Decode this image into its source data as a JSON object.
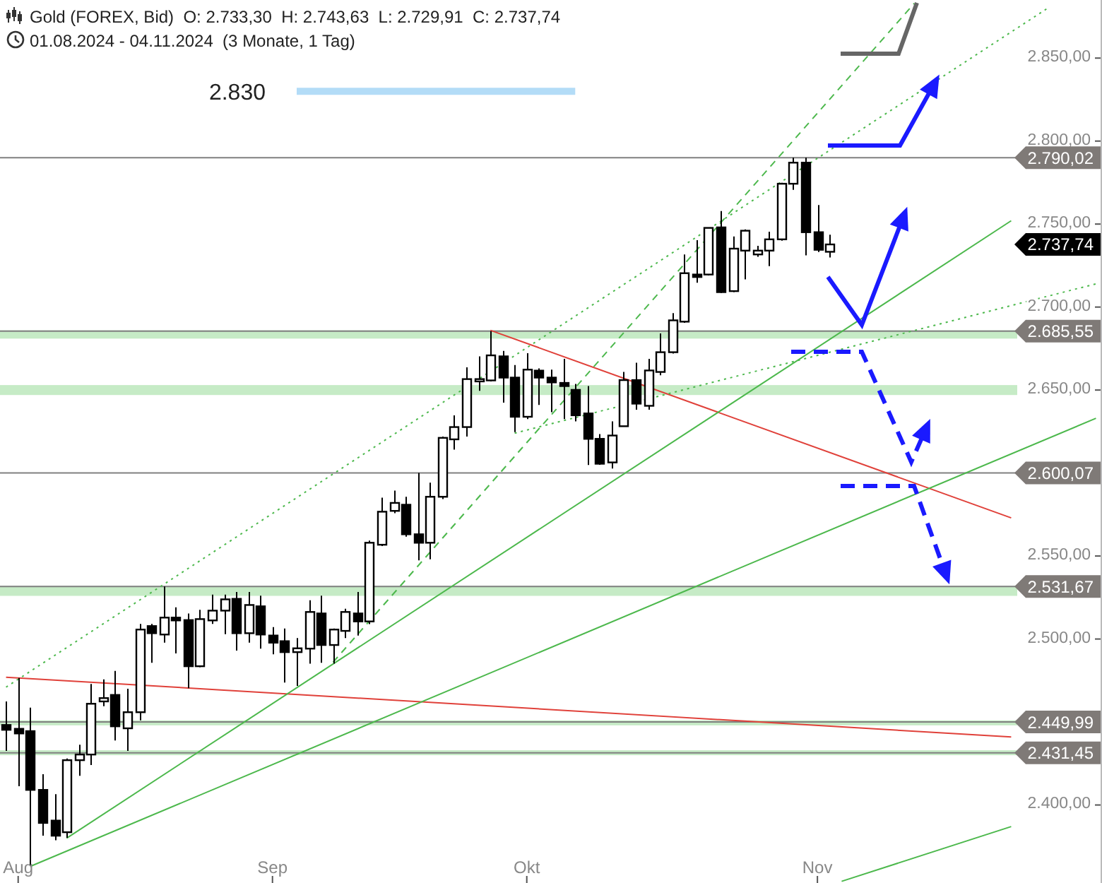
{
  "chart_data": {
    "type": "candlestick",
    "title": "Gold (FOREX, Bid)  O: 2.733,30  H: 2.743,63  L: 2.729,91  C: 2.737,74",
    "subtitle": "01.08.2024 - 04.11.2024  (3 Monate, 1 Tag)",
    "categories": [
      null,
      "Aug",
      null,
      null,
      null,
      null,
      null,
      null,
      null,
      null,
      null,
      null,
      null,
      null,
      null,
      null,
      null,
      null,
      null,
      null,
      null,
      null,
      "Sep",
      null,
      null,
      null,
      null,
      null,
      null,
      null,
      null,
      null,
      null,
      null,
      null,
      null,
      null,
      null,
      null,
      null,
      null,
      null,
      null,
      "Okt",
      null,
      null,
      null,
      null,
      null,
      null,
      null,
      null,
      null,
      null,
      null,
      null,
      null,
      null,
      null,
      null,
      null,
      null,
      null,
      null,
      null,
      null,
      null,
      "Nov",
      null,
      null,
      null,
      null,
      null,
      null,
      null,
      null,
      null,
      null,
      null,
      null,
      null,
      null,
      null,
      null,
      null,
      null,
      null,
      null,
      null,
      null,
      null
    ],
    "ohlc": [
      [
        2448.2,
        2462.4,
        2432.6,
        2445.3
      ],
      [
        2445.9,
        2476.5,
        2411.3,
        2443.1
      ],
      [
        2444.5,
        2458.7,
        2363.2,
        2409.1
      ],
      [
        2409.1,
        2418.5,
        2381.5,
        2389.2
      ],
      [
        2390.6,
        2406.5,
        2378.7,
        2381.5
      ],
      [
        2383.6,
        2428,
        2380.2,
        2427
      ],
      [
        2427,
        2436.3,
        2417.6,
        2430.4
      ],
      [
        2430.4,
        2472.9,
        2424.1,
        2461
      ],
      [
        2462.4,
        2475.7,
        2459.5,
        2464.4
      ],
      [
        2466.3,
        2480.8,
        2438.9,
        2447.4
      ],
      [
        2446.2,
        2470,
        2432.6,
        2455.9
      ],
      [
        2455.9,
        2509.1,
        2451,
        2505.7
      ],
      [
        2507.8,
        2509.1,
        2485.7,
        2503.5
      ],
      [
        2502.7,
        2531.67,
        2497.8,
        2512.9
      ],
      [
        2512.9,
        2519.1,
        2491.3,
        2511.2
      ],
      [
        2511.4,
        2515.4,
        2470.4,
        2483.6
      ],
      [
        2483.6,
        2517.6,
        2483,
        2512
      ],
      [
        2511.2,
        2526.7,
        2509.1,
        2517.1
      ],
      [
        2517.1,
        2526.7,
        2502.9,
        2523.9
      ],
      [
        2524.2,
        2528.4,
        2493,
        2503.5
      ],
      [
        2503.5,
        2528.4,
        2497.8,
        2520.5
      ],
      [
        2519.7,
        2526.1,
        2494.2,
        2502.7
      ],
      [
        2502.1,
        2507.2,
        2490.8,
        2497.8
      ],
      [
        2498.7,
        2506.3,
        2473.8,
        2492.1
      ],
      [
        2492.1,
        2500.6,
        2471.7,
        2494.4
      ],
      [
        2494.2,
        2523.3,
        2485.1,
        2516.3
      ],
      [
        2515.4,
        2526.1,
        2485.7,
        2496.4
      ],
      [
        2496.4,
        2506.3,
        2485.1,
        2505.7
      ],
      [
        2504.9,
        2518.2,
        2500.6,
        2516.3
      ],
      [
        2515.4,
        2528.4,
        2502.1,
        2510.6
      ],
      [
        2510.6,
        2559.3,
        2509,
        2558
      ],
      [
        2556.8,
        2585.2,
        2556,
        2576.7
      ],
      [
        2577.2,
        2589.4,
        2575.8,
        2582
      ],
      [
        2580.9,
        2585.7,
        2561.6,
        2563.1
      ],
      [
        2563.1,
        2600.07,
        2547.4,
        2558
      ],
      [
        2558,
        2594.2,
        2548,
        2585.7
      ],
      [
        2585.7,
        2622,
        2584.3,
        2621.2
      ],
      [
        2620.3,
        2634.8,
        2614.1,
        2627.7
      ],
      [
        2627.7,
        2663.7,
        2622,
        2656.6
      ],
      [
        2655.2,
        2670.3,
        2649.5,
        2656.6
      ],
      [
        2655.8,
        2685.55,
        2655.2,
        2670.9
      ],
      [
        2670.3,
        2673.6,
        2642.4,
        2657.5
      ],
      [
        2657.5,
        2665.1,
        2624.6,
        2633.9
      ],
      [
        2633.9,
        2672.2,
        2632.5,
        2662.3
      ],
      [
        2661.7,
        2663.1,
        2641,
        2657.5
      ],
      [
        2657.5,
        2662.3,
        2636.7,
        2654.6
      ],
      [
        2654.3,
        2668.8,
        2632.5,
        2652.4
      ],
      [
        2650.1,
        2653.7,
        2631.1,
        2634.8
      ],
      [
        2635.9,
        2652.4,
        2604.8,
        2620.6
      ],
      [
        2620.6,
        2623.5,
        2605,
        2605.6
      ],
      [
        2606.4,
        2631.1,
        2602.7,
        2622.6
      ],
      [
        2628.2,
        2660.9,
        2628,
        2656
      ],
      [
        2656,
        2666.5,
        2638.2,
        2641.8
      ],
      [
        2640.5,
        2668.8,
        2638.2,
        2661.8
      ],
      [
        2660.9,
        2684.1,
        2658.9,
        2672.8
      ],
      [
        2672.8,
        2696.3,
        2672,
        2692
      ],
      [
        2691.2,
        2731.7,
        2690.5,
        2720.4
      ],
      [
        2719.6,
        2740.3,
        2714.7,
        2718.1
      ],
      [
        2719.6,
        2748,
        2719,
        2747.7
      ],
      [
        2748,
        2757.9,
        2708.5,
        2709
      ],
      [
        2709.6,
        2742.5,
        2709,
        2735.2
      ],
      [
        2734,
        2746.8,
        2716.7,
        2746
      ],
      [
        2731.7,
        2736.9,
        2730.3,
        2734
      ],
      [
        2734,
        2745.4,
        2724.7,
        2740.8
      ],
      [
        2740.8,
        2774.9,
        2740,
        2774.3
      ],
      [
        2774.3,
        2790,
        2770.6,
        2787
      ],
      [
        2787,
        2790.02,
        2731.1,
        2745.1
      ],
      [
        2745.1,
        2761.5,
        2733.2,
        2734.5
      ],
      [
        2733.3,
        2743.63,
        2729.91,
        2737.74
      ],
      null,
      null,
      null,
      null,
      null,
      null,
      null,
      null,
      null,
      null,
      null,
      null,
      null,
      null,
      null,
      null,
      null,
      null,
      null,
      null,
      null,
      null
    ],
    "series": [
      {
        "type": "line",
        "color": "#e0413a",
        "values": [
          2477,
          null,
          null,
          null,
          null,
          null,
          null,
          null,
          null,
          null,
          null,
          null,
          null,
          null,
          null,
          null,
          null,
          null,
          null,
          null,
          null,
          null,
          null,
          null,
          null,
          null,
          null,
          null,
          null,
          null,
          null,
          null,
          null,
          null,
          null,
          null,
          null,
          null,
          null,
          null,
          null,
          null,
          null,
          null,
          null,
          null,
          null,
          null,
          null,
          null,
          null,
          null,
          null,
          null,
          null,
          null,
          null,
          null,
          null,
          null,
          null,
          null,
          null,
          null,
          null,
          null,
          null,
          null,
          null,
          null,
          null,
          null,
          null,
          null,
          null,
          null,
          null,
          null,
          null,
          null,
          null,
          null,
          null,
          2441,
          null,
          null,
          null,
          null,
          null,
          null,
          null
        ]
      },
      {
        "type": "line",
        "color": "#e0413a",
        "values": [
          null,
          null,
          null,
          null,
          null,
          null,
          null,
          null,
          null,
          null,
          null,
          null,
          null,
          null,
          null,
          null,
          null,
          null,
          null,
          null,
          null,
          null,
          null,
          null,
          null,
          null,
          null,
          null,
          null,
          null,
          null,
          null,
          null,
          null,
          null,
          null,
          null,
          null,
          null,
          null,
          2686,
          null,
          null,
          null,
          null,
          null,
          null,
          null,
          null,
          null,
          null,
          null,
          null,
          null,
          null,
          null,
          null,
          null,
          null,
          null,
          null,
          null,
          null,
          null,
          null,
          null,
          null,
          null,
          null,
          null,
          null,
          null,
          null,
          null,
          null,
          null,
          null,
          null,
          null,
          null,
          null,
          null,
          null,
          2573,
          null,
          null,
          null,
          null,
          null,
          null,
          null
        ]
      },
      {
        "type": "line",
        "color": "#4cb84c",
        "values": [
          null,
          null,
          null,
          null,
          null,
          2380,
          null,
          null,
          null,
          null,
          null,
          null,
          null,
          null,
          null,
          null,
          null,
          null,
          null,
          null,
          null,
          null,
          null,
          null,
          null,
          null,
          null,
          null,
          null,
          null,
          null,
          null,
          null,
          null,
          null,
          null,
          null,
          null,
          null,
          null,
          null,
          null,
          null,
          null,
          null,
          null,
          null,
          null,
          null,
          null,
          null,
          null,
          null,
          null,
          null,
          null,
          null,
          null,
          null,
          null,
          null,
          null,
          null,
          null,
          null,
          null,
          null,
          null,
          null,
          null,
          null,
          null,
          null,
          null,
          null,
          null,
          null,
          null,
          null,
          null,
          null,
          null,
          null,
          2752,
          null,
          null,
          null,
          null,
          null,
          null,
          null
        ]
      },
      {
        "type": "line",
        "color": "#4cb84c",
        "values": [
          null,
          null,
          2363,
          null,
          null,
          null,
          null,
          null,
          null,
          null,
          null,
          null,
          null,
          null,
          null,
          null,
          null,
          null,
          null,
          null,
          null,
          null,
          null,
          null,
          null,
          null,
          null,
          null,
          null,
          null,
          null,
          null,
          null,
          null,
          null,
          null,
          null,
          null,
          null,
          null,
          null,
          null,
          null,
          null,
          null,
          null,
          null,
          null,
          null,
          null,
          null,
          null,
          null,
          null,
          null,
          null,
          null,
          null,
          null,
          null,
          null,
          null,
          null,
          null,
          null,
          null,
          null,
          null,
          null,
          null,
          null,
          null,
          null,
          null,
          null,
          null,
          null,
          null,
          null,
          null,
          null,
          null,
          null,
          null,
          null,
          null,
          null,
          null,
          null,
          null,
          2633
        ]
      },
      {
        "type": "line",
        "color": "#4cb84c",
        "values": [
          null,
          null,
          null,
          null,
          null,
          null,
          null,
          null,
          null,
          null,
          null,
          null,
          null,
          null,
          null,
          null,
          null,
          null,
          null,
          null,
          null,
          null,
          null,
          null,
          null,
          null,
          null,
          null,
          null,
          null,
          null,
          null,
          null,
          null,
          null,
          null,
          null,
          null,
          null,
          null,
          null,
          null,
          null,
          null,
          null,
          null,
          null,
          null,
          null,
          null,
          null,
          null,
          null,
          null,
          null,
          null,
          null,
          null,
          null,
          null,
          null,
          null,
          null,
          null,
          null,
          null,
          null,
          null,
          null,
          2354,
          null,
          null,
          null,
          null,
          null,
          null,
          null,
          null,
          null,
          null,
          null,
          null,
          null,
          2387,
          null,
          null,
          null,
          null,
          null,
          null,
          null
        ]
      },
      {
        "type": "line",
        "color": "#4cb84c",
        "line_style": "dashed",
        "values": [
          null,
          null,
          null,
          null,
          null,
          null,
          null,
          null,
          null,
          null,
          null,
          null,
          null,
          null,
          null,
          null,
          null,
          null,
          null,
          null,
          null,
          null,
          null,
          null,
          null,
          null,
          null,
          2486,
          null,
          null,
          null,
          null,
          null,
          null,
          null,
          null,
          null,
          null,
          null,
          null,
          null,
          null,
          null,
          null,
          null,
          null,
          null,
          null,
          null,
          null,
          null,
          null,
          null,
          null,
          null,
          null,
          null,
          null,
          null,
          null,
          null,
          null,
          null,
          null,
          null,
          null,
          null,
          null,
          null,
          null,
          null,
          null,
          null,
          null,
          null,
          2883,
          null,
          null,
          null,
          null,
          null,
          null,
          null,
          null,
          null,
          null,
          null,
          null,
          null,
          null,
          null
        ]
      },
      {
        "type": "line",
        "color": "#4cb84c",
        "line_style": "dotted",
        "values": [
          2471,
          null,
          null,
          null,
          null,
          null,
          null,
          null,
          null,
          null,
          null,
          null,
          null,
          null,
          null,
          null,
          null,
          null,
          null,
          null,
          null,
          null,
          null,
          null,
          null,
          null,
          null,
          null,
          null,
          null,
          null,
          null,
          null,
          null,
          null,
          null,
          null,
          null,
          null,
          null,
          null,
          null,
          null,
          null,
          null,
          null,
          null,
          null,
          null,
          null,
          null,
          null,
          null,
          null,
          null,
          null,
          null,
          null,
          null,
          null,
          null,
          null,
          null,
          null,
          null,
          null,
          null,
          null,
          null,
          null,
          null,
          null,
          null,
          null,
          null,
          null,
          null,
          null,
          null,
          null,
          null,
          null,
          null,
          null,
          null,
          null,
          2880,
          null,
          null,
          null,
          null
        ]
      },
      {
        "type": "line",
        "color": "#4cb84c",
        "line_style": "dotted",
        "values": [
          null,
          null,
          null,
          null,
          null,
          null,
          null,
          null,
          null,
          null,
          null,
          null,
          null,
          null,
          null,
          null,
          null,
          null,
          null,
          null,
          null,
          null,
          null,
          null,
          null,
          null,
          null,
          null,
          null,
          null,
          null,
          null,
          null,
          null,
          null,
          null,
          null,
          null,
          null,
          null,
          null,
          null,
          2624,
          null,
          null,
          null,
          null,
          null,
          null,
          null,
          null,
          null,
          null,
          null,
          null,
          null,
          null,
          null,
          null,
          null,
          null,
          null,
          null,
          null,
          null,
          null,
          null,
          null,
          null,
          null,
          null,
          null,
          null,
          null,
          null,
          null,
          null,
          null,
          null,
          null,
          null,
          null,
          null,
          null,
          null,
          null,
          null,
          null,
          null,
          null,
          2714
        ]
      },
      {
        "type": "line",
        "name": "2.830",
        "color": "#b3dcf7",
        "values": [
          null,
          null,
          null,
          null,
          null,
          null,
          null,
          null,
          null,
          null,
          null,
          null,
          null,
          null,
          null,
          null,
          null,
          null,
          null,
          null,
          null,
          null,
          null,
          null,
          2830,
          null,
          null,
          null,
          null,
          null,
          null,
          null,
          null,
          null,
          null,
          null,
          null,
          null,
          null,
          null,
          null,
          null,
          null,
          null,
          null,
          null,
          null,
          2830,
          null,
          null,
          null,
          null,
          null,
          null,
          null,
          null,
          null,
          null,
          null,
          null,
          null,
          null,
          null,
          null,
          null,
          null,
          null,
          null,
          null,
          null,
          null,
          null,
          null,
          null,
          null,
          null,
          null,
          null,
          null,
          null,
          null,
          null,
          null,
          null,
          null,
          null,
          null,
          null,
          null,
          null,
          null
        ]
      }
    ],
    "ylim": [
      2353,
      2885
    ],
    "yticks": [
      {
        "value": 2400,
        "label": "2.400,00"
      },
      {
        "value": 2450,
        "label": null
      },
      {
        "value": 2500,
        "label": "2.500,00"
      },
      {
        "value": 2550,
        "label": "2.550,00"
      },
      {
        "value": 2600,
        "label": null
      },
      {
        "value": 2650,
        "label": "2.650,00"
      },
      {
        "value": 2700,
        "label": "2.700,00"
      },
      {
        "value": 2750,
        "label": "2.750,00"
      },
      {
        "value": 2800,
        "label": "2.800,00"
      },
      {
        "value": 2850,
        "label": "2.850,00"
      }
    ],
    "ref_lines": [
      {
        "axis": "y",
        "value": 2790.02,
        "label": "2.790,02",
        "color": "#808080"
      },
      {
        "axis": "y",
        "value": 2685.55,
        "label": "2.685,55",
        "color": "#808080"
      },
      {
        "axis": "y",
        "value": 2600.07,
        "label": "2.600,07",
        "color": "#808080"
      },
      {
        "axis": "y",
        "value": 2531.67,
        "label": "2.531,67",
        "color": "#808080"
      },
      {
        "axis": "y",
        "value": 2449.99,
        "label": "2.449,99",
        "color": "#808080"
      },
      {
        "axis": "y",
        "value": 2431.45,
        "label": "2.431,45",
        "color": "#808080"
      }
    ],
    "bands": [
      {
        "axis": "y",
        "from": 2681,
        "to": 2686,
        "color": "#c6ebc6"
      },
      {
        "axis": "y",
        "from": 2647,
        "to": 2653,
        "color": "#c6ebc6"
      },
      {
        "axis": "y",
        "from": 2526,
        "to": 2532,
        "color": "#c6ebc6"
      },
      {
        "axis": "y",
        "from": 2448,
        "to": 2451,
        "color": "#c6ebc6"
      },
      {
        "axis": "y",
        "from": 2430,
        "to": 2433,
        "color": "#c6ebc6"
      }
    ],
    "annotations": [
      "2.737,74"
    ]
  }
}
